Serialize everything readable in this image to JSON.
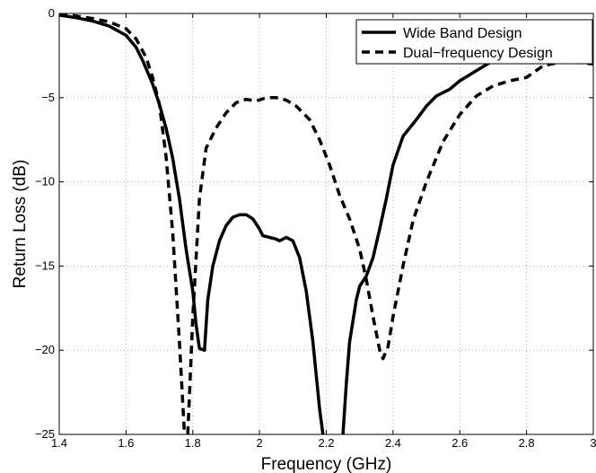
{
  "chart_data": {
    "type": "line",
    "title": "",
    "xlabel": "Frequency (GHz)",
    "ylabel": "Return Loss (dB)",
    "xlim": [
      1.4,
      3.0
    ],
    "ylim": [
      -25,
      0
    ],
    "grid": true,
    "legend_position": "top-right",
    "x_ticks": [
      {
        "value": 1.4,
        "label": "1.4"
      },
      {
        "value": 1.6,
        "label": "1.6"
      },
      {
        "value": 1.8,
        "label": "1.8"
      },
      {
        "value": 2.0,
        "label": "2"
      },
      {
        "value": 2.2,
        "label": "2.2"
      },
      {
        "value": 2.4,
        "label": "2.4"
      },
      {
        "value": 2.6,
        "label": "2.6"
      },
      {
        "value": 2.8,
        "label": "2.8"
      },
      {
        "value": 3.0,
        "label": "3"
      }
    ],
    "y_ticks": [
      {
        "value": 0,
        "label": "0"
      },
      {
        "value": -5,
        "label": "−5"
      },
      {
        "value": -10,
        "label": "−10"
      },
      {
        "value": -15,
        "label": "−15"
      },
      {
        "value": -20,
        "label": "−20"
      },
      {
        "value": -25,
        "label": "−25"
      }
    ],
    "series": [
      {
        "name": "Wide Band Design",
        "style": "solid",
        "color": "#000000",
        "points": [
          [
            1.4,
            -0.1
          ],
          [
            1.45,
            -0.25
          ],
          [
            1.5,
            -0.45
          ],
          [
            1.55,
            -0.75
          ],
          [
            1.6,
            -1.3
          ],
          [
            1.63,
            -2.0
          ],
          [
            1.65,
            -2.8
          ],
          [
            1.68,
            -4.2
          ],
          [
            1.7,
            -5.4
          ],
          [
            1.72,
            -6.8
          ],
          [
            1.74,
            -8.6
          ],
          [
            1.76,
            -11.0
          ],
          [
            1.78,
            -14.0
          ],
          [
            1.8,
            -16.5
          ],
          [
            1.81,
            -18.5
          ],
          [
            1.82,
            -19.9
          ],
          [
            1.835,
            -20.0
          ],
          [
            1.845,
            -17.0
          ],
          [
            1.86,
            -15.0
          ],
          [
            1.88,
            -13.5
          ],
          [
            1.9,
            -12.6
          ],
          [
            1.92,
            -12.1
          ],
          [
            1.94,
            -11.95
          ],
          [
            1.96,
            -11.95
          ],
          [
            1.98,
            -12.2
          ],
          [
            2.0,
            -12.8
          ],
          [
            2.01,
            -13.2
          ],
          [
            2.03,
            -13.3
          ],
          [
            2.05,
            -13.4
          ],
          [
            2.06,
            -13.5
          ],
          [
            2.08,
            -13.3
          ],
          [
            2.1,
            -13.5
          ],
          [
            2.12,
            -14.5
          ],
          [
            2.14,
            -16.5
          ],
          [
            2.16,
            -19.5
          ],
          [
            2.18,
            -23.5
          ],
          [
            2.19,
            -25.0
          ]
        ]
      },
      {
        "name": "Wide Band Design",
        "style": "solid",
        "color": "#000000",
        "points": [
          [
            2.25,
            -25.0
          ],
          [
            2.26,
            -22.0
          ],
          [
            2.27,
            -19.5
          ],
          [
            2.29,
            -17.0
          ],
          [
            2.3,
            -16.2
          ],
          [
            2.32,
            -15.6
          ],
          [
            2.34,
            -14.5
          ],
          [
            2.36,
            -12.8
          ],
          [
            2.38,
            -11.0
          ],
          [
            2.4,
            -9.0
          ],
          [
            2.43,
            -7.3
          ],
          [
            2.47,
            -6.3
          ],
          [
            2.5,
            -5.5
          ],
          [
            2.53,
            -4.9
          ],
          [
            2.57,
            -4.5
          ],
          [
            2.6,
            -4.0
          ],
          [
            2.65,
            -3.4
          ],
          [
            2.7,
            -2.8
          ],
          [
            2.75,
            -2.3
          ],
          [
            2.8,
            -2.1
          ],
          [
            2.85,
            -2.0
          ],
          [
            2.9,
            -2.0
          ],
          [
            2.95,
            -2.0
          ],
          [
            3.0,
            -2.0
          ]
        ]
      },
      {
        "name": "Dual−frequency Design",
        "style": "dashed",
        "color": "#000000",
        "points": [
          [
            1.4,
            -0.05
          ],
          [
            1.45,
            -0.15
          ],
          [
            1.5,
            -0.3
          ],
          [
            1.55,
            -0.5
          ],
          [
            1.6,
            -0.9
          ],
          [
            1.63,
            -1.5
          ],
          [
            1.66,
            -2.6
          ],
          [
            1.68,
            -3.8
          ],
          [
            1.7,
            -5.4
          ],
          [
            1.72,
            -8.5
          ],
          [
            1.74,
            -13.0
          ],
          [
            1.76,
            -19.5
          ],
          [
            1.775,
            -25.0
          ]
        ]
      },
      {
        "name": "Dual−frequency Design",
        "style": "dashed",
        "color": "#000000",
        "points": [
          [
            1.785,
            -25.0
          ],
          [
            1.8,
            -18.0
          ],
          [
            1.82,
            -11.0
          ],
          [
            1.84,
            -8.0
          ],
          [
            1.87,
            -6.8
          ],
          [
            1.9,
            -5.9
          ],
          [
            1.93,
            -5.3
          ],
          [
            1.96,
            -5.1
          ],
          [
            1.99,
            -5.2
          ],
          [
            2.02,
            -5.0
          ],
          [
            2.05,
            -5.0
          ],
          [
            2.08,
            -5.15
          ],
          [
            2.11,
            -5.5
          ],
          [
            2.15,
            -6.3
          ],
          [
            2.18,
            -7.5
          ],
          [
            2.21,
            -9.0
          ],
          [
            2.24,
            -10.8
          ],
          [
            2.27,
            -12.2
          ],
          [
            2.3,
            -14.0
          ],
          [
            2.32,
            -15.8
          ],
          [
            2.34,
            -18.0
          ],
          [
            2.36,
            -20.0
          ],
          [
            2.37,
            -20.5
          ],
          [
            2.385,
            -19.8
          ],
          [
            2.4,
            -18.0
          ],
          [
            2.43,
            -15.0
          ],
          [
            2.46,
            -12.3
          ],
          [
            2.5,
            -10.0
          ],
          [
            2.55,
            -7.6
          ],
          [
            2.6,
            -6.0
          ],
          [
            2.65,
            -4.9
          ],
          [
            2.7,
            -4.3
          ],
          [
            2.75,
            -4.0
          ],
          [
            2.8,
            -3.8
          ],
          [
            2.85,
            -3.1
          ],
          [
            2.9,
            -2.9
          ],
          [
            2.95,
            -2.9
          ],
          [
            3.0,
            -3.0
          ]
        ]
      }
    ],
    "legend": [
      {
        "label": "Wide Band Design",
        "style": "solid"
      },
      {
        "label": "Dual−frequency Design",
        "style": "dashed"
      }
    ]
  }
}
